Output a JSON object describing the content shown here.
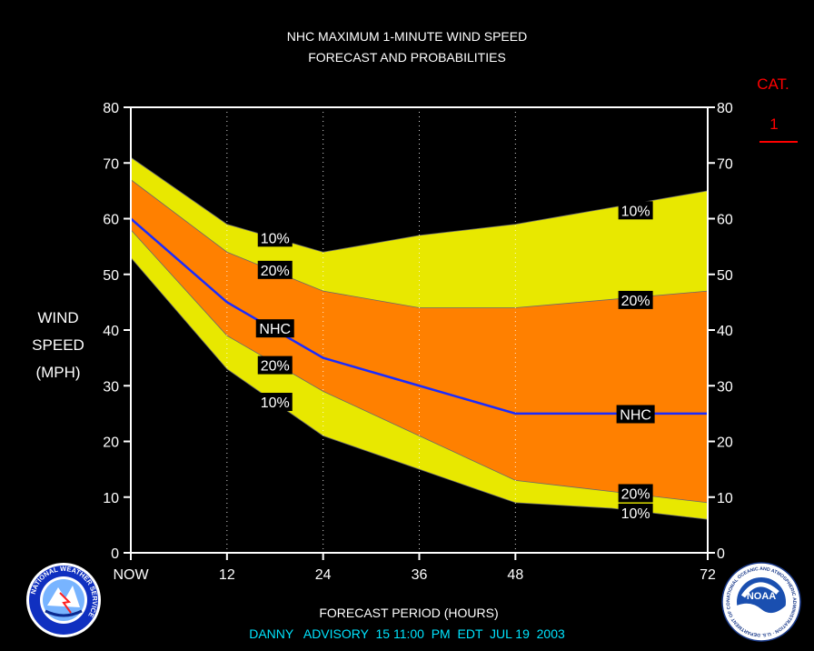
{
  "chart_data": {
    "type": "area",
    "title": "NHC MAXIMUM 1-MINUTE WIND SPEED",
    "subtitle": "FORECAST AND PROBABILITIES",
    "xlabel": "FORECAST PERIOD (HOURS)",
    "ylabel": [
      "WIND",
      "SPEED",
      "(MPH)"
    ],
    "x_ticks": [
      {
        "value": 0,
        "label": "NOW"
      },
      {
        "value": 12,
        "label": "12"
      },
      {
        "value": 24,
        "label": "24"
      },
      {
        "value": 36,
        "label": "36"
      },
      {
        "value": 48,
        "label": "48"
      },
      {
        "value": 72,
        "label": "72"
      }
    ],
    "xlim": [
      0,
      72
    ],
    "ylim": [
      0,
      80
    ],
    "y_ticks": [
      0,
      10,
      20,
      30,
      40,
      50,
      60,
      70,
      80
    ],
    "x": [
      0,
      12,
      24,
      36,
      48,
      60,
      72
    ],
    "series": [
      {
        "name": "10%",
        "role": "upper",
        "values": [
          71,
          59,
          54,
          57,
          59,
          62,
          65
        ]
      },
      {
        "name": "20%",
        "role": "upper",
        "values": [
          67,
          54,
          47,
          44,
          44,
          45.5,
          47
        ]
      },
      {
        "name": "NHC",
        "role": "forecast",
        "values": [
          60,
          45,
          35,
          30,
          25,
          25,
          25
        ]
      },
      {
        "name": "20%",
        "role": "lower",
        "values": [
          58,
          39,
          29,
          21,
          13,
          11,
          9
        ]
      },
      {
        "name": "10%",
        "role": "lower",
        "values": [
          53,
          33,
          21,
          15,
          9,
          8,
          6
        ]
      }
    ],
    "band_labels": [
      {
        "text": "10%",
        "x": 18,
        "y": 56.6
      },
      {
        "text": "20%",
        "x": 18,
        "y": 50.8
      },
      {
        "text": "NHC",
        "x": 18,
        "y": 40.3
      },
      {
        "text": "20%",
        "x": 18,
        "y": 33.7
      },
      {
        "text": "10%",
        "x": 18,
        "y": 27.1
      },
      {
        "text": "10%",
        "x": 63,
        "y": 61.5
      },
      {
        "text": "20%",
        "x": 63,
        "y": 45.4
      },
      {
        "text": "NHC",
        "x": 63,
        "y": 24.9
      },
      {
        "text": "20%",
        "x": 63,
        "y": 10.7
      },
      {
        "text": "10%",
        "x": 63,
        "y": 7.2
      }
    ],
    "grid_x": [
      12,
      24,
      36,
      48
    ],
    "colors": {
      "outer_band": "#e8e800",
      "inner_band": "#ff8000",
      "forecast_line": "#1a2bff",
      "background": "#000000",
      "plot_border": "#ffffff",
      "category": "#ff0000",
      "footer": "#00e5ff"
    }
  },
  "category": {
    "label": "CAT.",
    "value": "1"
  },
  "footer": "DANNY   ADVISORY  15 11:00  PM  EDT  JUL 19  2003",
  "logos": {
    "left": {
      "icon": "nws-logo-icon",
      "text": "NATIONAL WEATHER SERVICE"
    },
    "right": {
      "icon": "noaa-logo-icon",
      "text": "NOAA",
      "ring_text": "NATIONAL OCEANIC AND ATMOSPHERIC ADMINISTRATION · U.S. DEPARTMENT OF COMMERCE"
    }
  }
}
